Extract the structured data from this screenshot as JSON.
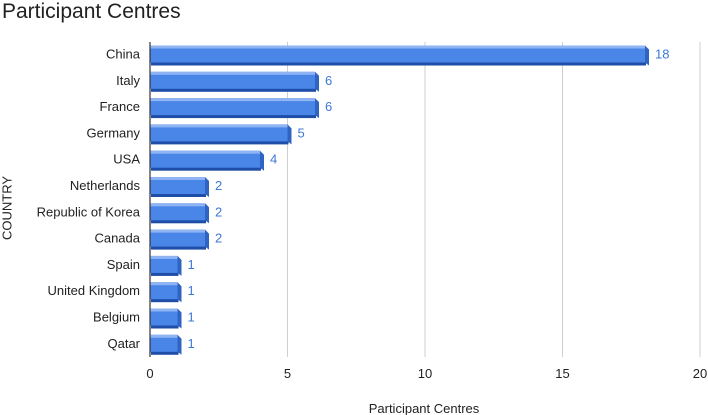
{
  "chart_data": {
    "type": "bar",
    "orientation": "horizontal",
    "title": "Participant Centres",
    "xlabel": "Participant Centres",
    "ylabel": "COUNTRY",
    "categories": [
      "China",
      "Italy",
      "France",
      "Germany",
      "USA",
      "Netherlands",
      "Republic of Korea",
      "Canada",
      "Spain",
      "United Kingdom",
      "Belgium",
      "Qatar"
    ],
    "values": [
      18,
      6,
      6,
      5,
      4,
      2,
      2,
      2,
      1,
      1,
      1,
      1
    ],
    "xlim": [
      0,
      20
    ],
    "xticks": [
      "0",
      "5",
      "10",
      "15",
      "20"
    ],
    "grid": true,
    "legend": "none",
    "data_labels": true,
    "colors": {
      "bar_face": "#4a86e8",
      "bar_top": "#8fb4f3",
      "bar_side": "#2f64c2",
      "bar_shadow": "#1e4ea8",
      "data_label": "#3c78d8",
      "grid": "#cfcfcf",
      "axis": "#333333"
    }
  }
}
